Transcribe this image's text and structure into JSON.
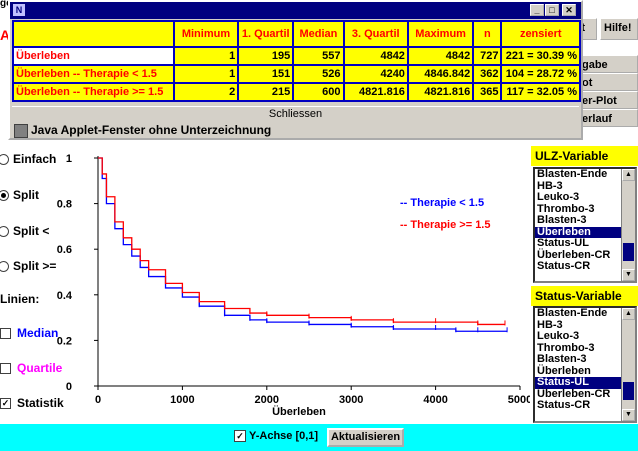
{
  "background_app": {
    "left_cut_text": "ge",
    "left_red_letter": "A",
    "buttons": [
      "art",
      "Hilfe!",
      "gabe",
      "ot",
      "er-Plot",
      "erlauf"
    ]
  },
  "dialog": {
    "title_icon": "N",
    "window_controls": [
      "_",
      "□",
      "✕"
    ],
    "table": {
      "headers": [
        "Minimum",
        "1. Quartil",
        "Median",
        "3. Quartil",
        "Maximum",
        "n",
        "zensiert"
      ],
      "rows": [
        {
          "label": "Überleben",
          "values": [
            "1",
            "195",
            "557",
            "4842",
            "4842",
            "727",
            "221 = 30.39 %"
          ]
        },
        {
          "label": "Überleben -- Therapie < 1.5",
          "values": [
            "1",
            "151",
            "526",
            "4240",
            "4846.842",
            "362",
            "104 = 28.72 %"
          ]
        },
        {
          "label": "Überleben -- Therapie >= 1.5",
          "values": [
            "2",
            "215",
            "600",
            "4821.816",
            "4821.816",
            "365",
            "117 = 32.05 %"
          ]
        }
      ]
    },
    "close_label": "Schliessen",
    "applet_warning": "Java Applet-Fenster ohne Unterzeichnung"
  },
  "left_controls": {
    "radios": [
      {
        "label": "Einfach",
        "checked": false
      },
      {
        "label": "Split",
        "checked": true
      },
      {
        "label": "Split <",
        "checked": false
      },
      {
        "label": "Split >=",
        "checked": false
      }
    ],
    "lines_label": "Linien:",
    "checkboxes": [
      {
        "label": "Median",
        "checked": false,
        "color": "#0000ff"
      },
      {
        "label": "Quartile",
        "checked": false,
        "color": "#ff00ff"
      },
      {
        "label": "Statistik",
        "checked": true,
        "color": "#000000"
      }
    ]
  },
  "chart_data": {
    "type": "line",
    "xlabel": "Überleben",
    "ylabel": "",
    "xlim": [
      0,
      5000
    ],
    "ylim": [
      0,
      1
    ],
    "x_ticks": [
      "0",
      "1000",
      "2000",
      "3000",
      "4000",
      "5000"
    ],
    "y_ticks": [
      "0",
      "0.2",
      "0.4",
      "0.6",
      "0.8",
      "1"
    ],
    "series": [
      {
        "name": "-- Therapie < 1.5",
        "color": "#0000ff",
        "x": [
          0,
          50,
          100,
          200,
          300,
          400,
          500,
          600,
          800,
          1000,
          1200,
          1500,
          1800,
          2000,
          2500,
          3000,
          3500,
          4000,
          4240,
          4500,
          4847
        ],
        "y": [
          1.0,
          0.91,
          0.8,
          0.69,
          0.62,
          0.57,
          0.52,
          0.48,
          0.43,
          0.39,
          0.35,
          0.31,
          0.29,
          0.28,
          0.27,
          0.26,
          0.25,
          0.25,
          0.24,
          0.24,
          0.24
        ]
      },
      {
        "name": "-- Therapie >= 1.5",
        "color": "#ff0000",
        "x": [
          0,
          50,
          100,
          200,
          300,
          400,
          500,
          600,
          800,
          1000,
          1200,
          1500,
          1800,
          2000,
          2500,
          3000,
          3500,
          4000,
          4500,
          4822
        ],
        "y": [
          1.0,
          0.93,
          0.83,
          0.72,
          0.65,
          0.6,
          0.55,
          0.51,
          0.45,
          0.41,
          0.37,
          0.34,
          0.32,
          0.31,
          0.3,
          0.29,
          0.28,
          0.28,
          0.27,
          0.27
        ]
      }
    ],
    "legend_position": "top-right",
    "grid": false
  },
  "ulz_panel": {
    "title": "ULZ-Variable",
    "items": [
      "Blasten-Ende",
      "HB-3",
      "Leuko-3",
      "Thrombo-3",
      "Blasten-3",
      "Überleben",
      "Status-UL",
      "Überleben-CR",
      "Status-CR"
    ],
    "selected_index": 5
  },
  "status_panel": {
    "title": "Status-Variable",
    "items": [
      "Blasten-Ende",
      "HB-3",
      "Leuko-3",
      "Thrombo-3",
      "Blasten-3",
      "Überleben",
      "Status-UL",
      "Überleben-CR",
      "Status-CR"
    ],
    "selected_index": 6
  },
  "bottom": {
    "y_axis_checkbox_label": "Y-Achse [0,1]",
    "y_axis_checked": true,
    "update_button": "Aktualisieren"
  }
}
